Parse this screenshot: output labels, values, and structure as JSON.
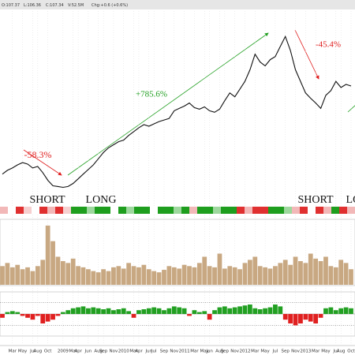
{
  "header": [
    "O:107.37",
    "L:106.36",
    "C:107.34",
    "V:52.5M",
    "Chg:+0.6 (+0.6%)"
  ],
  "chart_data": [
    {
      "type": "line",
      "log_scale": true,
      "ylim": [
        60,
        980
      ],
      "grid": true,
      "color": "#111111",
      "categories": [
        null,
        null,
        "Mar",
        null,
        "May",
        null,
        "Jul",
        "Aug",
        null,
        "Oct",
        null,
        null,
        "2009",
        null,
        "Mar",
        "Apr",
        null,
        "Jun",
        null,
        "Aug",
        "Sep",
        null,
        "Nov",
        null,
        "2010",
        null,
        "Mar",
        "Apr",
        null,
        "Jun",
        "Jul",
        null,
        "Sep",
        null,
        "Nov",
        null,
        "2011",
        null,
        "Mar",
        null,
        "May",
        "Jun",
        null,
        "Aug",
        "Sep",
        null,
        "Nov",
        null,
        "2012",
        null,
        "Mar",
        null,
        "May",
        null,
        "Jul",
        null,
        "Sep",
        null,
        "Nov",
        null,
        "2013",
        null,
        "Mar",
        null,
        "May",
        null,
        "Jul",
        "Aug",
        null,
        "Oct"
      ],
      "values": [
        93.7,
        99.0,
        102.4,
        107.1,
        110.7,
        108.3,
        102.4,
        104.7,
        95.8,
        85.7,
        79.2,
        78.4,
        77.5,
        78.4,
        82.0,
        87.6,
        93.7,
        100.1,
        107.1,
        117.0,
        127.9,
        136.8,
        143.0,
        149.5,
        152.9,
        163.5,
        172.8,
        182.7,
        191.0,
        186.8,
        193.2,
        199.8,
        204.3,
        208.8,
        233.4,
        241.4,
        249.5,
        260.9,
        244.1,
        238.7,
        246.7,
        233.4,
        228.2,
        238.7,
        269.8,
        301.6,
        285.2,
        318.8,
        356.4,
        421.3,
        526.4,
        470.8,
        445.2,
        486.9,
        509.0,
        588.3,
        680.0,
        556.3,
        421.3,
        356.4,
        301.6,
        279.0,
        260.9,
        241.4,
        291.6,
        311.8,
        356.4,
        326.2,
        340.8,
        333.4
      ],
      "annotations": [
        {
          "text": "-58.3%",
          "color": "#e02020"
        },
        {
          "text": "+785.6%",
          "color": "#22a022"
        },
        {
          "text": "-45.4%",
          "color": "#e02020"
        },
        {
          "text": "SHORT",
          "color": "#111111"
        },
        {
          "text": "LONG",
          "color": "#111111"
        },
        {
          "text": "SHORT",
          "color": "#111111"
        },
        {
          "text": "LONG",
          "color": "#111111"
        }
      ],
      "regime_colors": [
        "#f2b8b8",
        "#ffffff",
        "#e03030",
        "#f6d0d0",
        "#ffffff",
        "#e03030",
        "#f2b8b8",
        "#e03030",
        "#f6d0d0",
        "#1e9e1e",
        "#1e9e1e",
        "#9ed89e",
        "#1e9e1e",
        "#1e9e1e",
        "#ffffff",
        "#1e9e1e",
        "#9ed89e",
        "#1e9e1e",
        "#1e9e1e",
        "#ffffff",
        "#1e9e1e",
        "#1e9e1e",
        "#9ed89e",
        "#1e9e1e",
        "#f2b8b8",
        "#1e9e1e",
        "#1e9e1e",
        "#9ed89e",
        "#1e9e1e",
        "#1e9e1e",
        "#e03030",
        "#f2b8b8",
        "#e03030",
        "#e03030",
        "#1e9e1e",
        "#1e9e1e",
        "#9ed89e",
        "#f2b8b8",
        "#e03030",
        "#ffffff",
        "#e03030",
        "#f2b8b8",
        "#1e9e1e",
        "#e03030",
        "#f2b8b8"
      ]
    },
    {
      "type": "bar",
      "color": "#c8a882",
      "ylim": [
        0,
        100
      ],
      "values": [
        30,
        35,
        28,
        32,
        25,
        28,
        22,
        30,
        40,
        95,
        70,
        45,
        38,
        35,
        42,
        30,
        28,
        25,
        22,
        20,
        25,
        22,
        28,
        30,
        26,
        35,
        30,
        28,
        32,
        25,
        22,
        20,
        24,
        30,
        28,
        26,
        32,
        30,
        28,
        35,
        45,
        30,
        28,
        50,
        26,
        30,
        28,
        25,
        35,
        40,
        45,
        30,
        28,
        26,
        30,
        35,
        40,
        32,
        45,
        38,
        35,
        50,
        42,
        38,
        45,
        30,
        28,
        40,
        35,
        25
      ]
    },
    {
      "type": "bar",
      "ylim": [
        -1,
        1
      ],
      "positive_color": "#22a022",
      "negative_color": "#e02020",
      "ref_lines": [
        -0.6,
        0.6
      ],
      "values": [
        -0.2,
        0.1,
        0.15,
        0.1,
        -0.1,
        -0.2,
        -0.3,
        -0.1,
        -0.5,
        -0.4,
        -0.3,
        -0.1,
        0.1,
        0.2,
        0.3,
        0.35,
        0.4,
        0.3,
        0.35,
        0.3,
        0.25,
        0.3,
        0.2,
        0.25,
        0.3,
        0.15,
        -0.2,
        0.2,
        0.25,
        0.3,
        0.35,
        0.3,
        0.2,
        0.3,
        0.4,
        0.35,
        0.3,
        -0.1,
        0.2,
        0.1,
        0.15,
        -0.3,
        0.2,
        0.35,
        0.4,
        0.3,
        0.35,
        0.4,
        0.45,
        0.5,
        0.3,
        0.25,
        0.3,
        0.35,
        0.5,
        0.4,
        -0.3,
        -0.5,
        -0.6,
        -0.5,
        -0.3,
        -0.4,
        -0.5,
        -0.2,
        0.3,
        0.35,
        0.2,
        0.3,
        0.35,
        0.3
      ]
    }
  ]
}
